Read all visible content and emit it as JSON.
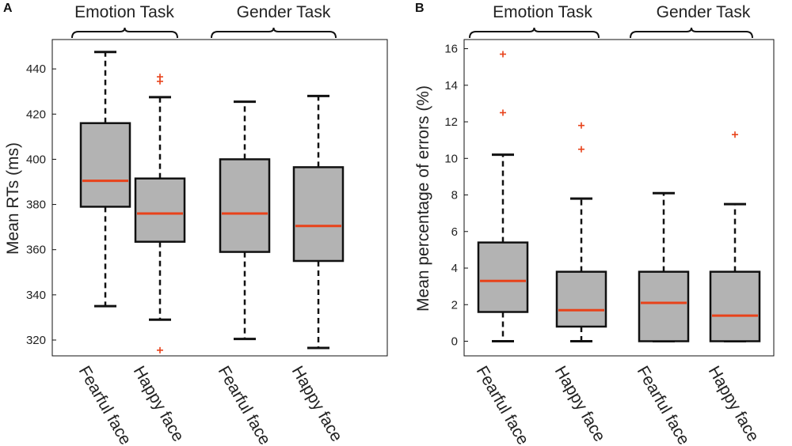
{
  "colors": {
    "box": "#b3b3b3",
    "median": "#e8421a",
    "outlier": "#e8421a",
    "line": "#111111"
  },
  "chart_data": [
    {
      "type": "box",
      "panel_label": "A",
      "ylabel": "Mean RTs (ms)",
      "ylim": [
        313,
        453
      ],
      "yticks": [
        320,
        340,
        360,
        380,
        400,
        420,
        440
      ],
      "groups": [
        {
          "label": "Emotion Task",
          "span": [
            0,
            1
          ]
        },
        {
          "label": "Gender Task",
          "span": [
            2,
            3
          ]
        }
      ],
      "categories": [
        "Fearful face",
        "Happy face",
        "Fearful face",
        "Happy face"
      ],
      "boxes": [
        {
          "whisker_low": 335,
          "q1": 379,
          "median": 390.5,
          "q3": 416,
          "whisker_high": 447.5,
          "outliers": []
        },
        {
          "whisker_low": 329,
          "q1": 363.5,
          "median": 376,
          "q3": 391.5,
          "whisker_high": 427.5,
          "outliers": [
            315.5,
            434.5,
            436.5
          ]
        },
        {
          "whisker_low": 320.5,
          "q1": 359,
          "median": 376,
          "q3": 400,
          "whisker_high": 425.5,
          "outliers": []
        },
        {
          "whisker_low": 316.5,
          "q1": 355,
          "median": 370.5,
          "q3": 396.5,
          "whisker_high": 428,
          "outliers": []
        }
      ]
    },
    {
      "type": "box",
      "panel_label": "B",
      "ylabel": "Mean percentage of errors (%)",
      "ylim": [
        -0.8,
        16.5
      ],
      "yticks": [
        0,
        2,
        4,
        6,
        8,
        10,
        12,
        14,
        16
      ],
      "groups": [
        {
          "label": "Emotion Task",
          "span": [
            0,
            1
          ]
        },
        {
          "label": "Gender Task",
          "span": [
            2,
            3
          ]
        }
      ],
      "categories": [
        "Fearful face",
        "Happy face",
        "Fearful face",
        "Happy face"
      ],
      "boxes": [
        {
          "whisker_low": 0,
          "q1": 1.6,
          "median": 3.3,
          "q3": 5.4,
          "whisker_high": 10.2,
          "outliers": [
            12.5,
            15.7
          ]
        },
        {
          "whisker_low": 0,
          "q1": 0.8,
          "median": 1.7,
          "q3": 3.8,
          "whisker_high": 7.8,
          "outliers": [
            10.5,
            11.8
          ]
        },
        {
          "whisker_low": 0,
          "q1": 0,
          "median": 2.1,
          "q3": 3.8,
          "whisker_high": 8.1,
          "outliers": []
        },
        {
          "whisker_low": 0,
          "q1": 0,
          "median": 1.4,
          "q3": 3.8,
          "whisker_high": 7.5,
          "outliers": [
            11.3
          ]
        }
      ]
    }
  ]
}
